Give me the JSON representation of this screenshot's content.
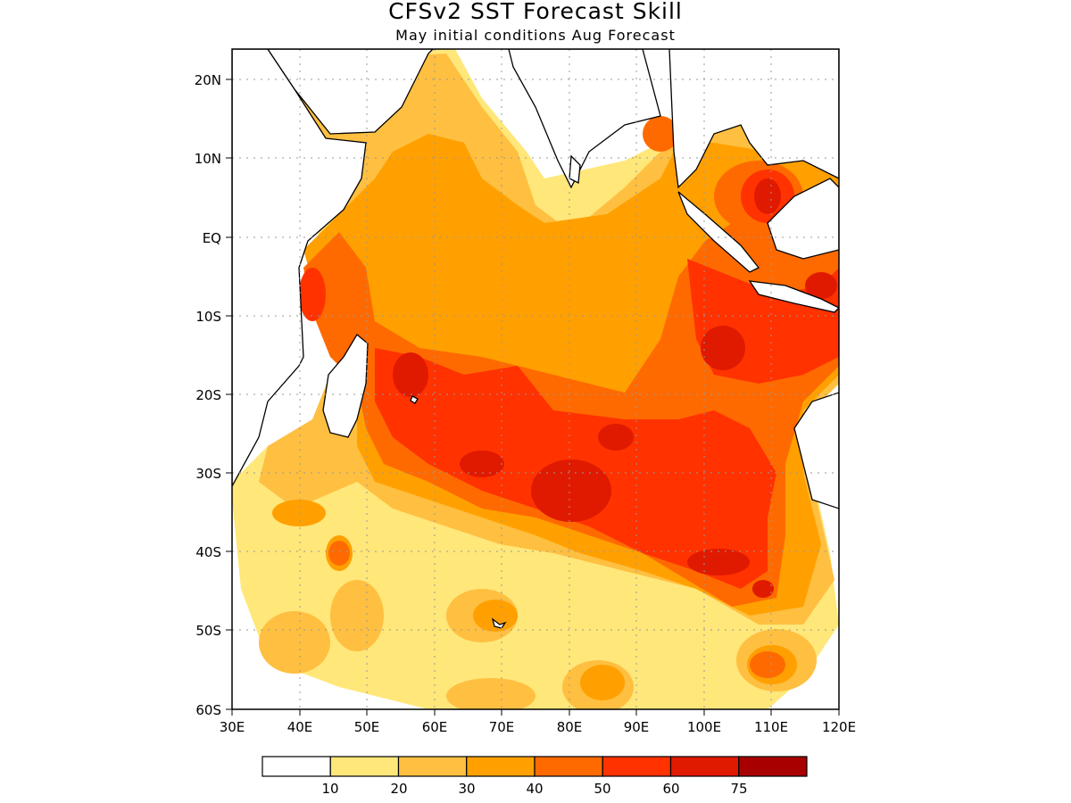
{
  "figure": {
    "title": "CFSv2 SST Forecast Skill",
    "subtitle": "May initial conditions   Aug Forecast"
  },
  "map": {
    "lon_range": [
      "30E",
      "120E"
    ],
    "lat_range": [
      "60S",
      "25N"
    ],
    "lon_ticks": [
      "30E",
      "40E",
      "50E",
      "60E",
      "70E",
      "80E",
      "90E",
      "100E",
      "110E",
      "120E"
    ],
    "lat_ticks": [
      "20N",
      "10N",
      "EQ",
      "10S",
      "20S",
      "30S",
      "40S",
      "50S",
      "60S"
    ],
    "grid": true,
    "coastlines": true
  },
  "colorbar": {
    "labels": [
      "10",
      "20",
      "30",
      "40",
      "50",
      "60",
      "75"
    ],
    "colors": [
      "#ffffff",
      "#ffe77a",
      "#ffbf40",
      "#ffa000",
      "#ff6a00",
      "#ff3200",
      "#e01a00",
      "#a80000"
    ]
  }
}
